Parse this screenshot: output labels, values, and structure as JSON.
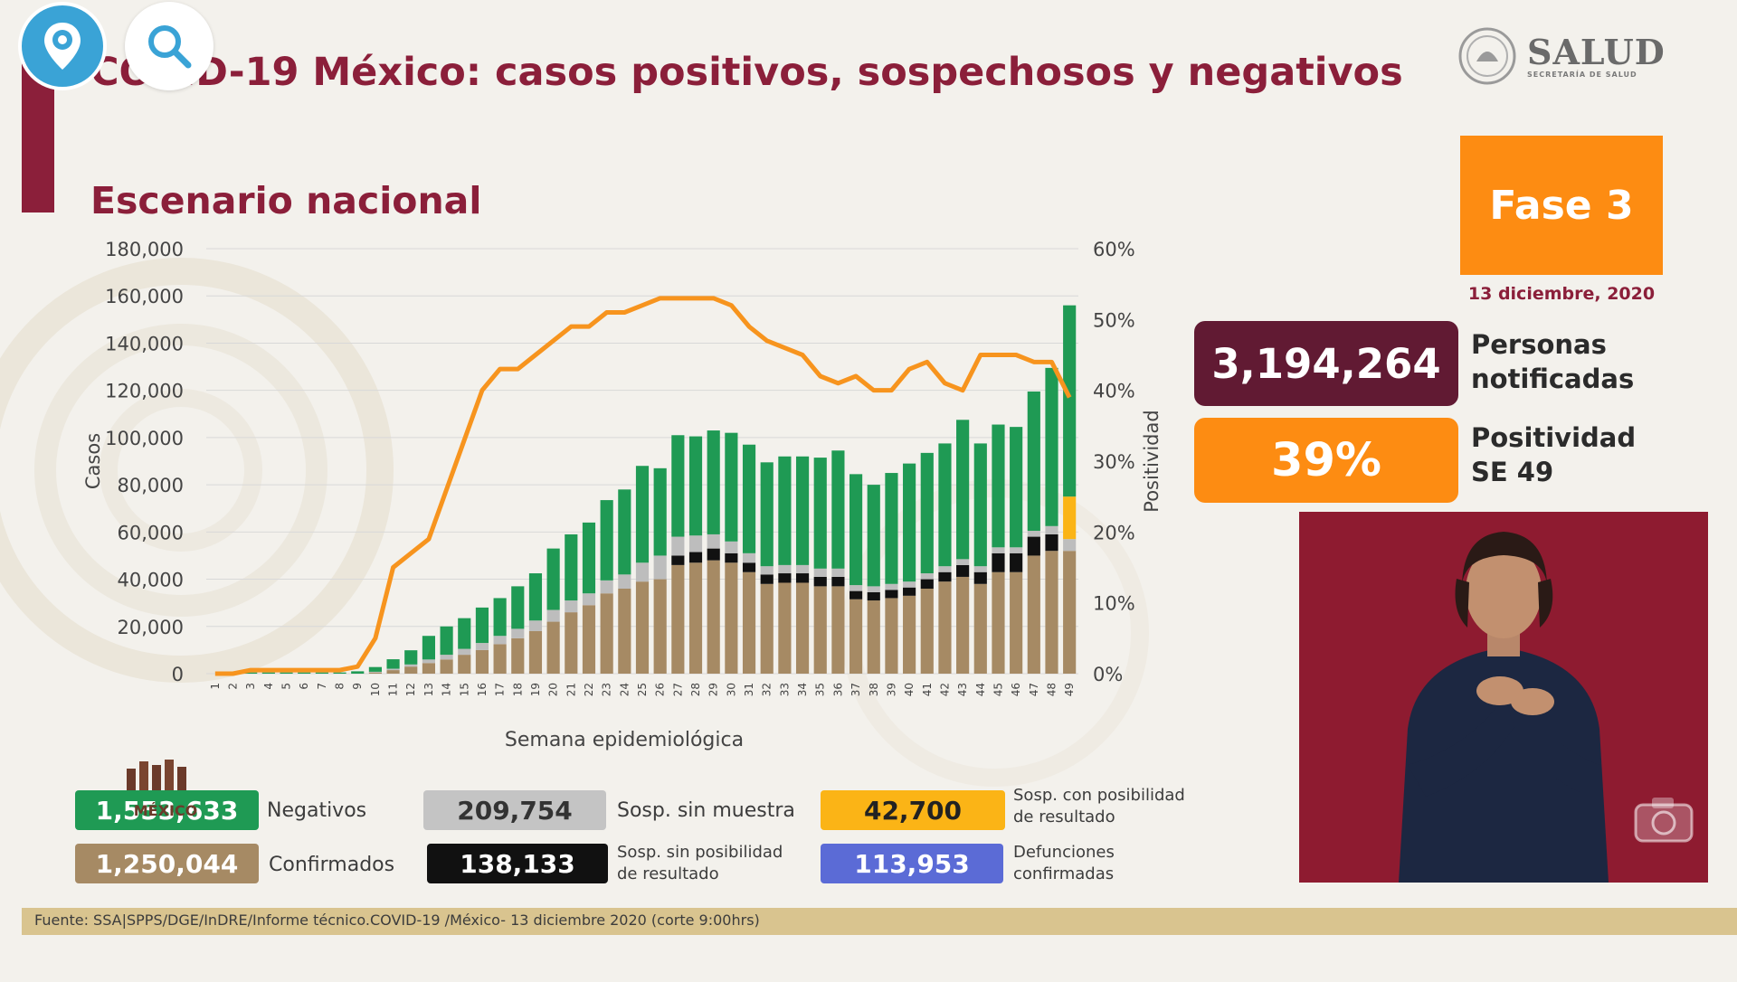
{
  "header": {
    "title": "COVID-19 México: casos positivos, sospechosos y negativos",
    "logo_main": "SALUD",
    "logo_sub": "SECRETARÍA DE SALUD"
  },
  "overlay_buttons": {
    "periscope_icon": "location-pin-icon",
    "search_icon": "search-icon"
  },
  "subtitle": "Escenario nacional",
  "chart_data": {
    "type": "bar",
    "ylabel": "Casos",
    "y2label": "Positividad",
    "xlabel": "Semana epidemiológica",
    "ylim": [
      0,
      180000
    ],
    "y2lim": [
      0,
      60
    ],
    "yticks": [
      "180,000",
      "160,000",
      "140,000",
      "120,000",
      "100,000",
      "80,000",
      "60,000",
      "40,000",
      "20,000",
      "0"
    ],
    "y2ticks": [
      "60%",
      "50%",
      "40%",
      "30%",
      "20%",
      "10%",
      "0%"
    ],
    "categories": [
      "1",
      "2",
      "3",
      "4",
      "5",
      "6",
      "7",
      "8",
      "9",
      "10",
      "11",
      "12",
      "13",
      "14",
      "15",
      "16",
      "17",
      "18",
      "19",
      "20",
      "21",
      "22",
      "23",
      "24",
      "25",
      "26",
      "27",
      "28",
      "29",
      "30",
      "31",
      "32",
      "33",
      "34",
      "35",
      "36",
      "37",
      "38",
      "39",
      "40",
      "41",
      "42",
      "43",
      "44",
      "45",
      "46",
      "47",
      "48",
      "49"
    ],
    "series": [
      {
        "name": "Confirmados",
        "color": "#a68a64",
        "values": [
          0,
          0,
          0,
          0,
          0,
          0,
          0,
          0,
          0,
          500,
          1500,
          3000,
          4500,
          6000,
          8000,
          10000,
          12500,
          15000,
          18000,
          22000,
          26000,
          29000,
          34000,
          36000,
          39000,
          40000,
          46000,
          47000,
          48000,
          47000,
          43000,
          38000,
          38500,
          38500,
          37000,
          37000,
          31500,
          31000,
          32000,
          33000,
          36000,
          39000,
          41000,
          38000,
          43000,
          43000,
          50000,
          52000,
          52000
        ]
      },
      {
        "name": "Sosp. sin posibilidad de resultado",
        "color": "#111111",
        "values": [
          0,
          0,
          0,
          0,
          0,
          0,
          0,
          0,
          0,
          0,
          0,
          0,
          0,
          0,
          0,
          0,
          0,
          0,
          0,
          0,
          0,
          0,
          0,
          0,
          0,
          0,
          4000,
          4500,
          5000,
          4000,
          4000,
          4000,
          4000,
          4000,
          4000,
          4000,
          3500,
          3500,
          3500,
          3500,
          4000,
          4000,
          5000,
          5000,
          8000,
          8000,
          8000,
          7000,
          0
        ]
      },
      {
        "name": "Sosp. sin muestra",
        "color": "#bdbdbd",
        "values": [
          0,
          0,
          0,
          0,
          0,
          0,
          0,
          0,
          0,
          300,
          600,
          900,
          1500,
          2000,
          2500,
          3000,
          3500,
          4000,
          4500,
          5000,
          5000,
          5000,
          5500,
          6000,
          8000,
          10000,
          8000,
          7000,
          6000,
          5000,
          4000,
          3500,
          3500,
          3500,
          3500,
          3500,
          2500,
          2500,
          2500,
          2500,
          2500,
          2500,
          2500,
          2500,
          2500,
          2500,
          2500,
          3500,
          5000
        ]
      },
      {
        "name": "Sosp. con posibilidad de resultado",
        "color": "#fbb416",
        "values": [
          0,
          0,
          0,
          0,
          0,
          0,
          0,
          0,
          0,
          0,
          0,
          0,
          0,
          0,
          0,
          0,
          0,
          0,
          0,
          0,
          0,
          0,
          0,
          0,
          0,
          0,
          0,
          0,
          0,
          0,
          0,
          0,
          0,
          0,
          0,
          0,
          0,
          0,
          0,
          0,
          0,
          0,
          0,
          0,
          0,
          0,
          0,
          0,
          18000
        ]
      },
      {
        "name": "Negativos",
        "color": "#1f9a54",
        "values": [
          0,
          0,
          500,
          500,
          500,
          500,
          500,
          500,
          1000,
          2000,
          4000,
          6000,
          10000,
          12000,
          13000,
          15000,
          16000,
          18000,
          20000,
          26000,
          28000,
          30000,
          34000,
          36000,
          41000,
          37000,
          43000,
          42000,
          44000,
          46000,
          46000,
          44000,
          46000,
          46000,
          47000,
          50000,
          47000,
          43000,
          47000,
          50000,
          51000,
          52000,
          59000,
          52000,
          52000,
          51000,
          59000,
          67000,
          81000
        ]
      }
    ],
    "line": {
      "name": "Positividad",
      "color": "#f7941e",
      "values": [
        0,
        0,
        0.5,
        0.5,
        0.5,
        0.5,
        0.5,
        0.5,
        1,
        5,
        15,
        17,
        19,
        26,
        33,
        40,
        43,
        43,
        45,
        47,
        49,
        49,
        51,
        51,
        52,
        53,
        53,
        53,
        53,
        52,
        49,
        47,
        46,
        45,
        42,
        41,
        42,
        40,
        40,
        43,
        44,
        41,
        40,
        45,
        45,
        45,
        44,
        44,
        39
      ]
    }
  },
  "phase": {
    "label": "Fase 3",
    "date": "13 diciembre, 2020"
  },
  "kpis": {
    "notified_value": "3,194,264",
    "notified_label_1": "Personas",
    "notified_label_2": "notificadas",
    "positivity_value": "39%",
    "positivity_label_1": "Positividad",
    "positivity_label_2": "SE 49"
  },
  "stats": {
    "negativos": {
      "value": "1,553,633",
      "label": "Negativos",
      "color": "#1f9a54"
    },
    "confirmados": {
      "value": "1,250,044",
      "label": "Confirmados",
      "color": "#a68a64"
    },
    "sosp_sin_muestra": {
      "value": "209,754",
      "label": "Sosp. sin muestra",
      "color": "#c4c4c4"
    },
    "sosp_sin_posibilidad": {
      "value": "138,133",
      "label_1": "Sosp. sin posibilidad",
      "label_2": "de resultado",
      "color": "#111111"
    },
    "sosp_con_posibilidad": {
      "value": "42,700",
      "label_1": "Sosp. con posibilidad",
      "label_2": "de resultado",
      "color": "#fbb416"
    },
    "defunciones": {
      "value": "113,953",
      "label_1": "Defunciones",
      "label_2": "confirmadas",
      "color": "#5b6bd6"
    }
  },
  "footer": "Fuente: SSA|SPPS/DGE/InDRE/Informe técnico.COVID-19 /México- 13 diciembre 2020 (corte 9:00hrs)",
  "mexico_logo_text": "MÉXICO",
  "video": {
    "camera_icon": "camera-icon"
  }
}
